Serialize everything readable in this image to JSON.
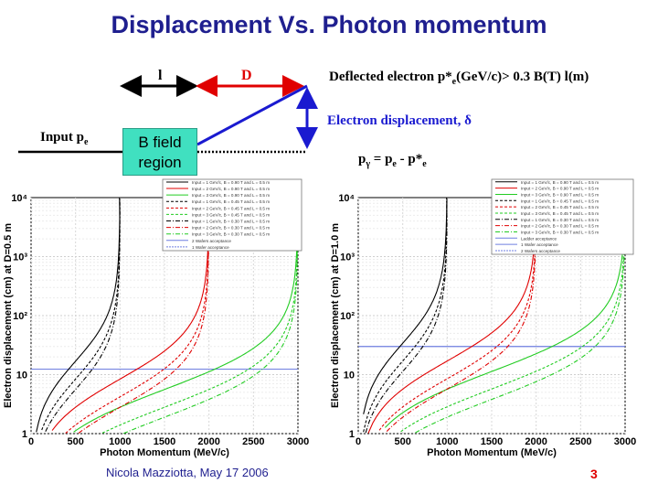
{
  "slide": {
    "title": "Displacement Vs. Photon momentum",
    "author": "Nicola Mazziotta, May 17 2006",
    "page_number": "3"
  },
  "diagram": {
    "label_l": "l",
    "label_D": "D",
    "deflected_main": "Deflected electron p*",
    "deflected_sub": "e",
    "deflected_tail": "(GeV/c)> 0.3 B(T) l(m)",
    "input_main": "Input p",
    "input_sub": "e",
    "bfield_line1": "B field",
    "bfield_line2": "region",
    "displacement": "Electron displacement, δ",
    "photon_eq_main": "p",
    "photon_eq_sub1": "γ",
    "photon_eq_mid": " = p",
    "photon_eq_sub2": "e",
    "photon_eq_mid2": " - p*",
    "photon_eq_sub3": "e"
  },
  "colors": {
    "title": "#1f1f8f",
    "black": "#000000",
    "red": "#e00000",
    "green": "#22cc22",
    "blue": "#1a1ad0",
    "teal": "#40e0c0",
    "lightblue": "#6f7fe0"
  },
  "chart_data": [
    {
      "type": "line",
      "title": "",
      "xlabel": "Photon Momentum (MeV/c)",
      "ylabel": "Electron displacement (cm) at D=0.5 m",
      "x_ticks": [
        "0",
        "500",
        "1000",
        "1500",
        "2000",
        "2500",
        "3000"
      ],
      "y_ticks": [
        "1",
        "10",
        "10²",
        "10³",
        "10⁴"
      ],
      "xlim": [
        0,
        3000
      ],
      "ylim_log10": [
        0,
        4
      ],
      "acceptance_lines": [
        {
          "name": "2 Wafers acceptance",
          "value": 12.4
        },
        {
          "name": "1 Wafer acceptance",
          "value": 12.4
        }
      ],
      "legend": [
        "Input = 1 GeV/c, B = 0.90 T and L = 0.5 m",
        "Input = 2 GeV/c, B = 0.90 T and L = 0.5 m",
        "Input = 3 GeV/c, B = 0.90 T and L = 0.5 m",
        "Input = 1 GeV/c, B = 0.45 T and L = 0.5 m",
        "Input = 2 GeV/c, B = 0.45 T and L = 0.5 m",
        "Input = 3 GeV/c, B = 0.45 T and L = 0.5 m",
        "Input = 1 GeV/c, B = 0.30 T and L = 0.5 m",
        "Input = 2 GeV/c, B = 0.30 T and L = 0.5 m",
        "Input = 3 GeV/c, B = 0.30 T and L = 0.5 m",
        "2 Wafers acceptance",
        "1 Wafer acceptance"
      ],
      "series": [
        {
          "name": "Input = 1 GeV/c, B = 0.90 T",
          "p_in": 1000,
          "k": 16.9,
          "color": "#000000",
          "dash": ""
        },
        {
          "name": "Input = 2 GeV/c, B = 0.90 T",
          "p_in": 2000,
          "k": 8.4,
          "color": "#e00000",
          "dash": ""
        },
        {
          "name": "Input = 3 GeV/c, B = 0.90 T",
          "p_in": 3000,
          "k": 5.6,
          "color": "#22cc22",
          "dash": ""
        },
        {
          "name": "Input = 1 GeV/c, B = 0.45 T",
          "p_in": 1000,
          "k": 8.4,
          "color": "#000000",
          "dash": "3,2"
        },
        {
          "name": "Input = 2 GeV/c, B = 0.45 T",
          "p_in": 2000,
          "k": 4.2,
          "color": "#e00000",
          "dash": "3,2"
        },
        {
          "name": "Input = 3 GeV/c, B = 0.45 T",
          "p_in": 3000,
          "k": 2.8,
          "color": "#22cc22",
          "dash": "3,2"
        },
        {
          "name": "Input = 1 GeV/c, B = 0.30 T",
          "p_in": 1000,
          "k": 5.6,
          "color": "#000000",
          "dash": "5,2,1,2"
        },
        {
          "name": "Input = 2 GeV/c, B = 0.30 T",
          "p_in": 2000,
          "k": 2.8,
          "color": "#e00000",
          "dash": "5,2,1,2"
        },
        {
          "name": "Input = 3 GeV/c, B = 0.30 T",
          "p_in": 3000,
          "k": 1.9,
          "color": "#22cc22",
          "dash": "5,2,1,2"
        }
      ]
    },
    {
      "type": "line",
      "title": "",
      "xlabel": "Photon Momentum (MeV/c)",
      "ylabel": "Electron displacement (cm) at D=1.0 m",
      "x_ticks": [
        "0",
        "500",
        "1000",
        "1500",
        "2000",
        "2500",
        "3000"
      ],
      "y_ticks": [
        "1",
        "10",
        "10²",
        "10³",
        "10⁴"
      ],
      "xlim": [
        0,
        3000
      ],
      "ylim_log10": [
        0,
        4
      ],
      "acceptance_lines": [
        {
          "name": "1 Wafer acceptance",
          "value": 30
        },
        {
          "name": "2 Wafers acceptance",
          "value": 30
        }
      ],
      "legend": [
        "Input = 1 GeV/c, B = 0.90 T and L = 0.5 m",
        "Input = 2 GeV/c, B = 0.90 T and L = 0.5 m",
        "Input = 3 GeV/c, B = 0.90 T and L = 0.5 m",
        "Input = 1 GeV/c, B = 0.45 T and L = 0.5 m",
        "Input = 2 GeV/c, B = 0.45 T and L = 0.5 m",
        "Input = 3 GeV/c, B = 0.45 T and L = 0.5 m",
        "Input = 1 GeV/c, B = 0.30 T and L = 0.5 m",
        "Input = 2 GeV/c, B = 0.30 T and L = 0.5 m",
        "Input = 3 GeV/c, B = 0.30 T and L = 0.5 m",
        "Ladder acceptance",
        "1 Wafer acceptance",
        "2 Wafers acceptance"
      ],
      "series": [
        {
          "name": "Input = 1 GeV/c, B = 0.90 T",
          "p_in": 1000,
          "k": 34,
          "color": "#000000",
          "dash": ""
        },
        {
          "name": "Input = 2 GeV/c, B = 0.90 T",
          "p_in": 2000,
          "k": 17,
          "color": "#e00000",
          "dash": ""
        },
        {
          "name": "Input = 3 GeV/c, B = 0.90 T",
          "p_in": 3000,
          "k": 11.3,
          "color": "#22cc22",
          "dash": ""
        },
        {
          "name": "Input = 1 GeV/c, B = 0.45 T",
          "p_in": 1000,
          "k": 17,
          "color": "#000000",
          "dash": "3,2"
        },
        {
          "name": "Input = 2 GeV/c, B = 0.45 T",
          "p_in": 2000,
          "k": 8.5,
          "color": "#e00000",
          "dash": "3,2"
        },
        {
          "name": "Input = 3 GeV/c, B = 0.45 T",
          "p_in": 3000,
          "k": 5.7,
          "color": "#22cc22",
          "dash": "3,2"
        },
        {
          "name": "Input = 1 GeV/c, B = 0.30 T",
          "p_in": 1000,
          "k": 11.3,
          "color": "#000000",
          "dash": "5,2,1,2"
        },
        {
          "name": "Input = 2 GeV/c, B = 0.30 T",
          "p_in": 2000,
          "k": 5.7,
          "color": "#e00000",
          "dash": "5,2,1,2"
        },
        {
          "name": "Input = 3 GeV/c, B = 0.30 T",
          "p_in": 3000,
          "k": 3.8,
          "color": "#22cc22",
          "dash": "5,2,1,2"
        }
      ]
    }
  ]
}
